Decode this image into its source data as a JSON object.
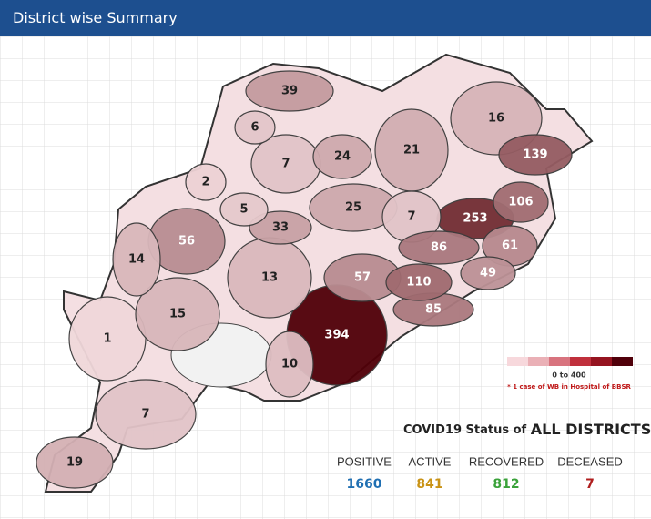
{
  "header": {
    "title": "District wise Summary"
  },
  "map": {
    "districts": [
      39,
      6,
      7,
      24,
      21,
      16,
      139,
      2,
      5,
      25,
      7,
      253,
      106,
      33,
      56,
      14,
      86,
      61,
      13,
      57,
      110,
      49,
      85,
      15,
      1,
      394,
      10,
      7,
      19
    ],
    "legend_label": "0 to 400",
    "note": "* 1 case of WB in Hospital of BBSR"
  },
  "status": {
    "title_prefix": "COVID19 Status of",
    "title_emphasis": "ALL DISTRICTS",
    "items": [
      {
        "label": "POSITIVE",
        "value": 1660,
        "color": "#1f6fb2"
      },
      {
        "label": "ACTIVE",
        "value": 841,
        "color": "#c99316"
      },
      {
        "label": "RECOVERED",
        "value": 812,
        "color": "#3aa23a"
      },
      {
        "label": "DECEASED",
        "value": 7,
        "color": "#b01e1e"
      }
    ]
  }
}
